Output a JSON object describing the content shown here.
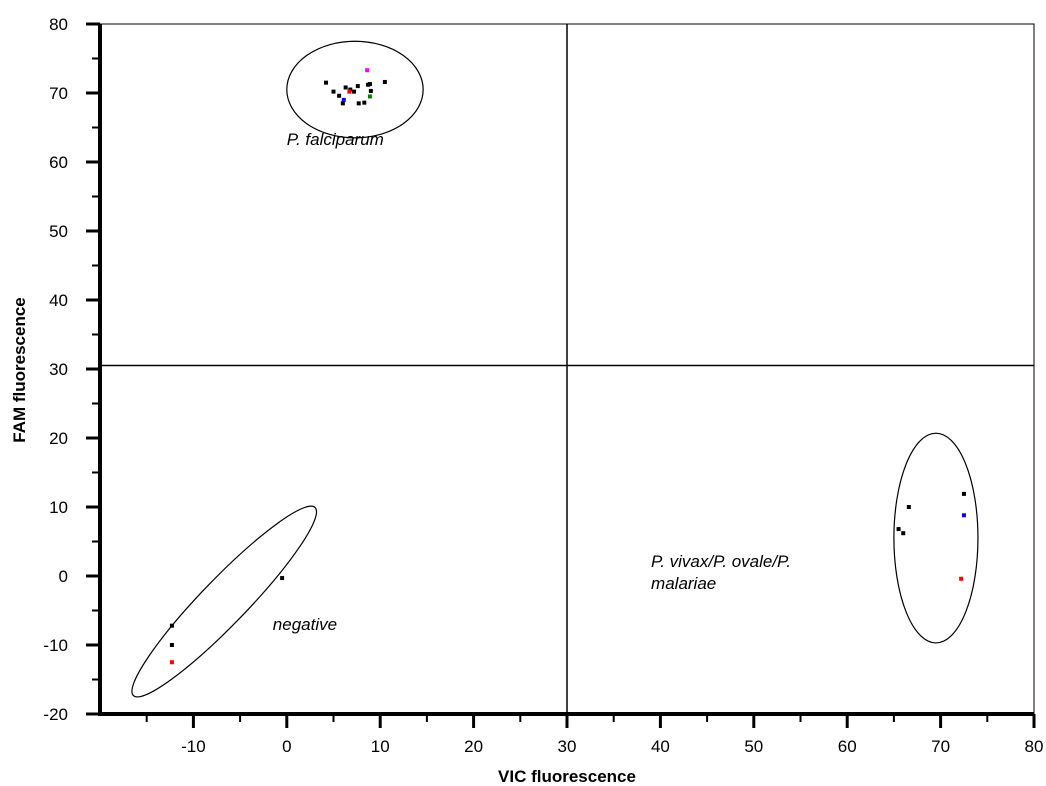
{
  "chart_data": {
    "type": "scatter",
    "xlabel": "VIC fluorescence",
    "ylabel": "FAM fluorescence",
    "xlim": [
      -20,
      80
    ],
    "ylim": [
      -20,
      80
    ],
    "x_ticks": [
      -10,
      0,
      10,
      20,
      30,
      40,
      50,
      60,
      70,
      80
    ],
    "y_ticks": [
      -20,
      -10,
      0,
      10,
      20,
      30,
      40,
      50,
      60,
      70,
      80
    ],
    "grid": false,
    "threshold_lines": {
      "x": 30,
      "y": 30.5
    },
    "series": [
      {
        "color": "#000000",
        "points": [
          [
            4.2,
            71.5
          ],
          [
            5.0,
            70.2
          ],
          [
            5.6,
            69.6
          ],
          [
            6.0,
            68.5
          ],
          [
            6.3,
            70.8
          ],
          [
            6.8,
            70.5
          ],
          [
            7.2,
            70.2
          ],
          [
            7.6,
            71.0
          ],
          [
            7.7,
            68.5
          ],
          [
            8.3,
            68.6
          ],
          [
            8.7,
            71.2
          ],
          [
            8.9,
            71.3
          ],
          [
            10.5,
            71.6
          ],
          [
            9.0,
            70.3
          ],
          [
            -12.3,
            -7.2
          ],
          [
            -12.3,
            -10.0
          ],
          [
            -0.5,
            -0.3
          ],
          [
            65.5,
            6.8
          ],
          [
            66.0,
            6.2
          ],
          [
            66.6,
            10.0
          ],
          [
            72.5,
            11.9
          ]
        ]
      },
      {
        "color": "#ff0000",
        "points": [
          [
            6.7,
            70.2
          ],
          [
            -12.3,
            -12.5
          ],
          [
            72.2,
            -0.4
          ]
        ]
      },
      {
        "color": "#0000ff",
        "points": [
          [
            6.1,
            69.0
          ],
          [
            72.5,
            8.8
          ]
        ]
      },
      {
        "color": "#ff00ff",
        "points": [
          [
            8.6,
            73.3
          ]
        ]
      },
      {
        "color": "#008000",
        "points": [
          [
            8.9,
            69.5
          ]
        ]
      }
    ],
    "annotations": [
      {
        "text": "P. falciparum",
        "x": 0,
        "y": 62.5
      },
      {
        "text": "negative",
        "x": -1.5,
        "y": -7.8
      },
      {
        "text": "P. vivax/P. ovale/P.",
        "x": 39,
        "y": 1.3
      },
      {
        "text": "malariae",
        "x": 39,
        "y": -1.9
      }
    ],
    "ellipses": [
      {
        "cx": 7.3,
        "cy": 70.5,
        "rx": 7.3,
        "ry": 7.0,
        "rotate": 0
      },
      {
        "cx": -6.7,
        "cy": -3.7,
        "rx": 14.0,
        "ry": 3.3,
        "rotate": -46
      },
      {
        "cx": 69.5,
        "cy": 5.5,
        "rx": 4.5,
        "ry": 15.2,
        "rotate": 0
      }
    ]
  }
}
